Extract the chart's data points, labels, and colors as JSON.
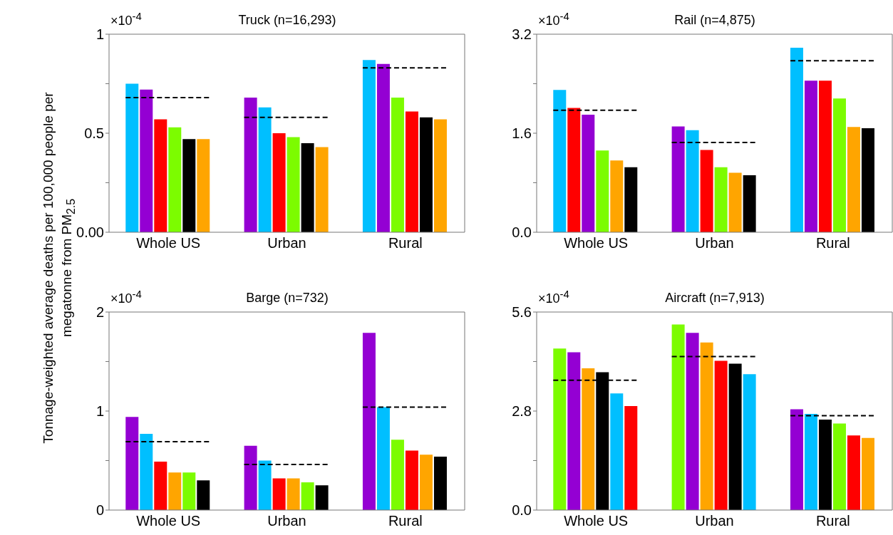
{
  "chart_data": [
    {
      "type": "bar",
      "title": "Truck (n=16,293)",
      "ylabel": "Tonnage-weighted average deaths per 100,000 people per megatonne from PM$_{2.5}$",
      "annotations": [
        "×10$^{-4}$"
      ],
      "categories": [
        "Whole US",
        "Urban",
        "Rural"
      ],
      "ylim": [
        0,
        1
      ],
      "yticks": [
        {
          "value": 0,
          "label": "0.00"
        },
        {
          "value": 0.25,
          "label": null
        },
        0.5,
        {
          "value": 0.75,
          "label": null
        },
        1
      ],
      "series": [
        {
          "colors": [
            "#00bfff",
            "#9400d3",
            "#00bfff"
          ],
          "values": [
            0.75,
            0.68,
            0.87
          ]
        },
        {
          "colors": [
            "#9400d3",
            "#00bfff",
            "#9400d3"
          ],
          "values": [
            0.72,
            0.63,
            0.85
          ]
        },
        {
          "colors": [
            "#ff0000",
            "#ff0000",
            "#7cfc00"
          ],
          "values": [
            0.57,
            0.5,
            0.68
          ]
        },
        {
          "colors": [
            "#7cfc00",
            "#7cfc00",
            "#ff0000"
          ],
          "values": [
            0.53,
            0.48,
            0.61
          ]
        },
        {
          "colors": [
            "#000000",
            "#000000",
            "#000000"
          ],
          "values": [
            0.47,
            0.45,
            0.58
          ]
        },
        {
          "colors": [
            "#ffa500",
            "#ffa500",
            "#ffa500"
          ],
          "values": [
            0.47,
            0.43,
            0.57
          ]
        }
      ],
      "ref_lines": [
        {
          "axis": "y",
          "value": 0.68,
          "color": "#000000",
          "line_style": "dashed"
        },
        {
          "axis": "y",
          "value": 0.58,
          "color": "#000000",
          "line_style": "dashed"
        },
        {
          "axis": "y",
          "value": 0.83,
          "color": "#000000",
          "line_style": "dashed"
        }
      ]
    },
    {
      "type": "bar",
      "title": "Rail (n=4,875)",
      "annotations": [
        "×10$^{-4}$"
      ],
      "categories": [
        "Whole US",
        "Urban",
        "Rural"
      ],
      "ylim": [
        0,
        3.2
      ],
      "yticks": [
        {
          "value": 0,
          "label": "0.0"
        },
        {
          "value": 0.8,
          "label": null
        },
        1.6,
        {
          "value": 2.4,
          "label": null
        },
        3.2
      ],
      "series": [
        {
          "colors": [
            "#00bfff",
            "#9400d3",
            "#00bfff"
          ],
          "values": [
            2.3,
            1.71,
            2.98
          ]
        },
        {
          "colors": [
            "#ff0000",
            "#00bfff",
            "#9400d3"
          ],
          "values": [
            2.01,
            1.65,
            2.45
          ]
        },
        {
          "colors": [
            "#9400d3",
            "#ff0000",
            "#ff0000"
          ],
          "values": [
            1.9,
            1.33,
            2.45
          ]
        },
        {
          "colors": [
            "#7cfc00",
            "#7cfc00",
            "#7cfc00"
          ],
          "values": [
            1.32,
            1.05,
            2.16
          ]
        },
        {
          "colors": [
            "#ffa500",
            "#ffa500",
            "#ffa500"
          ],
          "values": [
            1.16,
            0.96,
            1.7
          ]
        },
        {
          "colors": [
            "#000000",
            "#000000",
            "#000000"
          ],
          "values": [
            1.05,
            0.92,
            1.68
          ]
        }
      ],
      "ref_lines": [
        {
          "axis": "y",
          "value": 1.97,
          "color": "#000000",
          "line_style": "dashed"
        },
        {
          "axis": "y",
          "value": 1.45,
          "color": "#000000",
          "line_style": "dashed"
        },
        {
          "axis": "y",
          "value": 2.77,
          "color": "#000000",
          "line_style": "dashed"
        }
      ]
    },
    {
      "type": "bar",
      "title": "Barge (n=732)",
      "annotations": [
        "×10$^{-4}$"
      ],
      "categories": [
        "Whole US",
        "Urban",
        "Rural"
      ],
      "ylim": [
        0,
        2
      ],
      "yticks": [
        0,
        {
          "value": 0.5,
          "label": null
        },
        1,
        {
          "value": 1.5,
          "label": null
        },
        2
      ],
      "series": [
        {
          "colors": [
            "#9400d3",
            "#9400d3",
            "#9400d3"
          ],
          "values": [
            0.94,
            0.65,
            1.79
          ]
        },
        {
          "colors": [
            "#00bfff",
            "#00bfff",
            "#00bfff"
          ],
          "values": [
            0.77,
            0.5,
            1.04
          ]
        },
        {
          "colors": [
            "#ff0000",
            "#ff0000",
            "#7cfc00"
          ],
          "values": [
            0.49,
            0.32,
            0.71
          ]
        },
        {
          "colors": [
            "#ffa500",
            "#ffa500",
            "#ff0000"
          ],
          "values": [
            0.38,
            0.32,
            0.6
          ]
        },
        {
          "colors": [
            "#7cfc00",
            "#7cfc00",
            "#ffa500"
          ],
          "values": [
            0.38,
            0.28,
            0.56
          ]
        },
        {
          "colors": [
            "#000000",
            "#000000",
            "#000000"
          ],
          "values": [
            0.3,
            0.25,
            0.54
          ]
        }
      ],
      "ref_lines": [
        {
          "axis": "y",
          "value": 0.69,
          "color": "#000000",
          "line_style": "dashed"
        },
        {
          "axis": "y",
          "value": 0.46,
          "color": "#000000",
          "line_style": "dashed"
        },
        {
          "axis": "y",
          "value": 1.04,
          "color": "#000000",
          "line_style": "dashed"
        }
      ]
    },
    {
      "type": "bar",
      "title": "Aircraft (n=7,913)",
      "annotations": [
        "×10$^{-4}$"
      ],
      "categories": [
        "Whole US",
        "Urban",
        "Rural"
      ],
      "ylim": [
        0,
        5.6
      ],
      "yticks": [
        {
          "value": 0,
          "label": "0.0"
        },
        {
          "value": 1.4,
          "label": null
        },
        2.8,
        {
          "value": 4.2,
          "label": null
        },
        5.6
      ],
      "series": [
        {
          "colors": [
            "#7cfc00",
            "#7cfc00",
            "#9400d3"
          ],
          "values": [
            4.57,
            5.25,
            2.85
          ]
        },
        {
          "colors": [
            "#9400d3",
            "#9400d3",
            "#00bfff"
          ],
          "values": [
            4.46,
            5.01,
            2.72
          ]
        },
        {
          "colors": [
            "#ffa500",
            "#ffa500",
            "#000000"
          ],
          "values": [
            4.01,
            4.74,
            2.56
          ]
        },
        {
          "colors": [
            "#000000",
            "#ff0000",
            "#7cfc00"
          ],
          "values": [
            3.9,
            4.22,
            2.45
          ]
        },
        {
          "colors": [
            "#00bfff",
            "#000000",
            "#ff0000"
          ],
          "values": [
            3.3,
            4.14,
            2.11
          ]
        },
        {
          "colors": [
            "#ff0000",
            "#00bfff",
            "#ffa500"
          ],
          "values": [
            2.94,
            3.84,
            2.04
          ]
        }
      ],
      "ref_lines": [
        {
          "axis": "y",
          "value": 3.67,
          "color": "#000000",
          "line_style": "dashed"
        },
        {
          "axis": "y",
          "value": 4.34,
          "color": "#000000",
          "line_style": "dashed"
        },
        {
          "axis": "y",
          "value": 2.67,
          "color": "#000000",
          "line_style": "dashed"
        }
      ]
    }
  ]
}
